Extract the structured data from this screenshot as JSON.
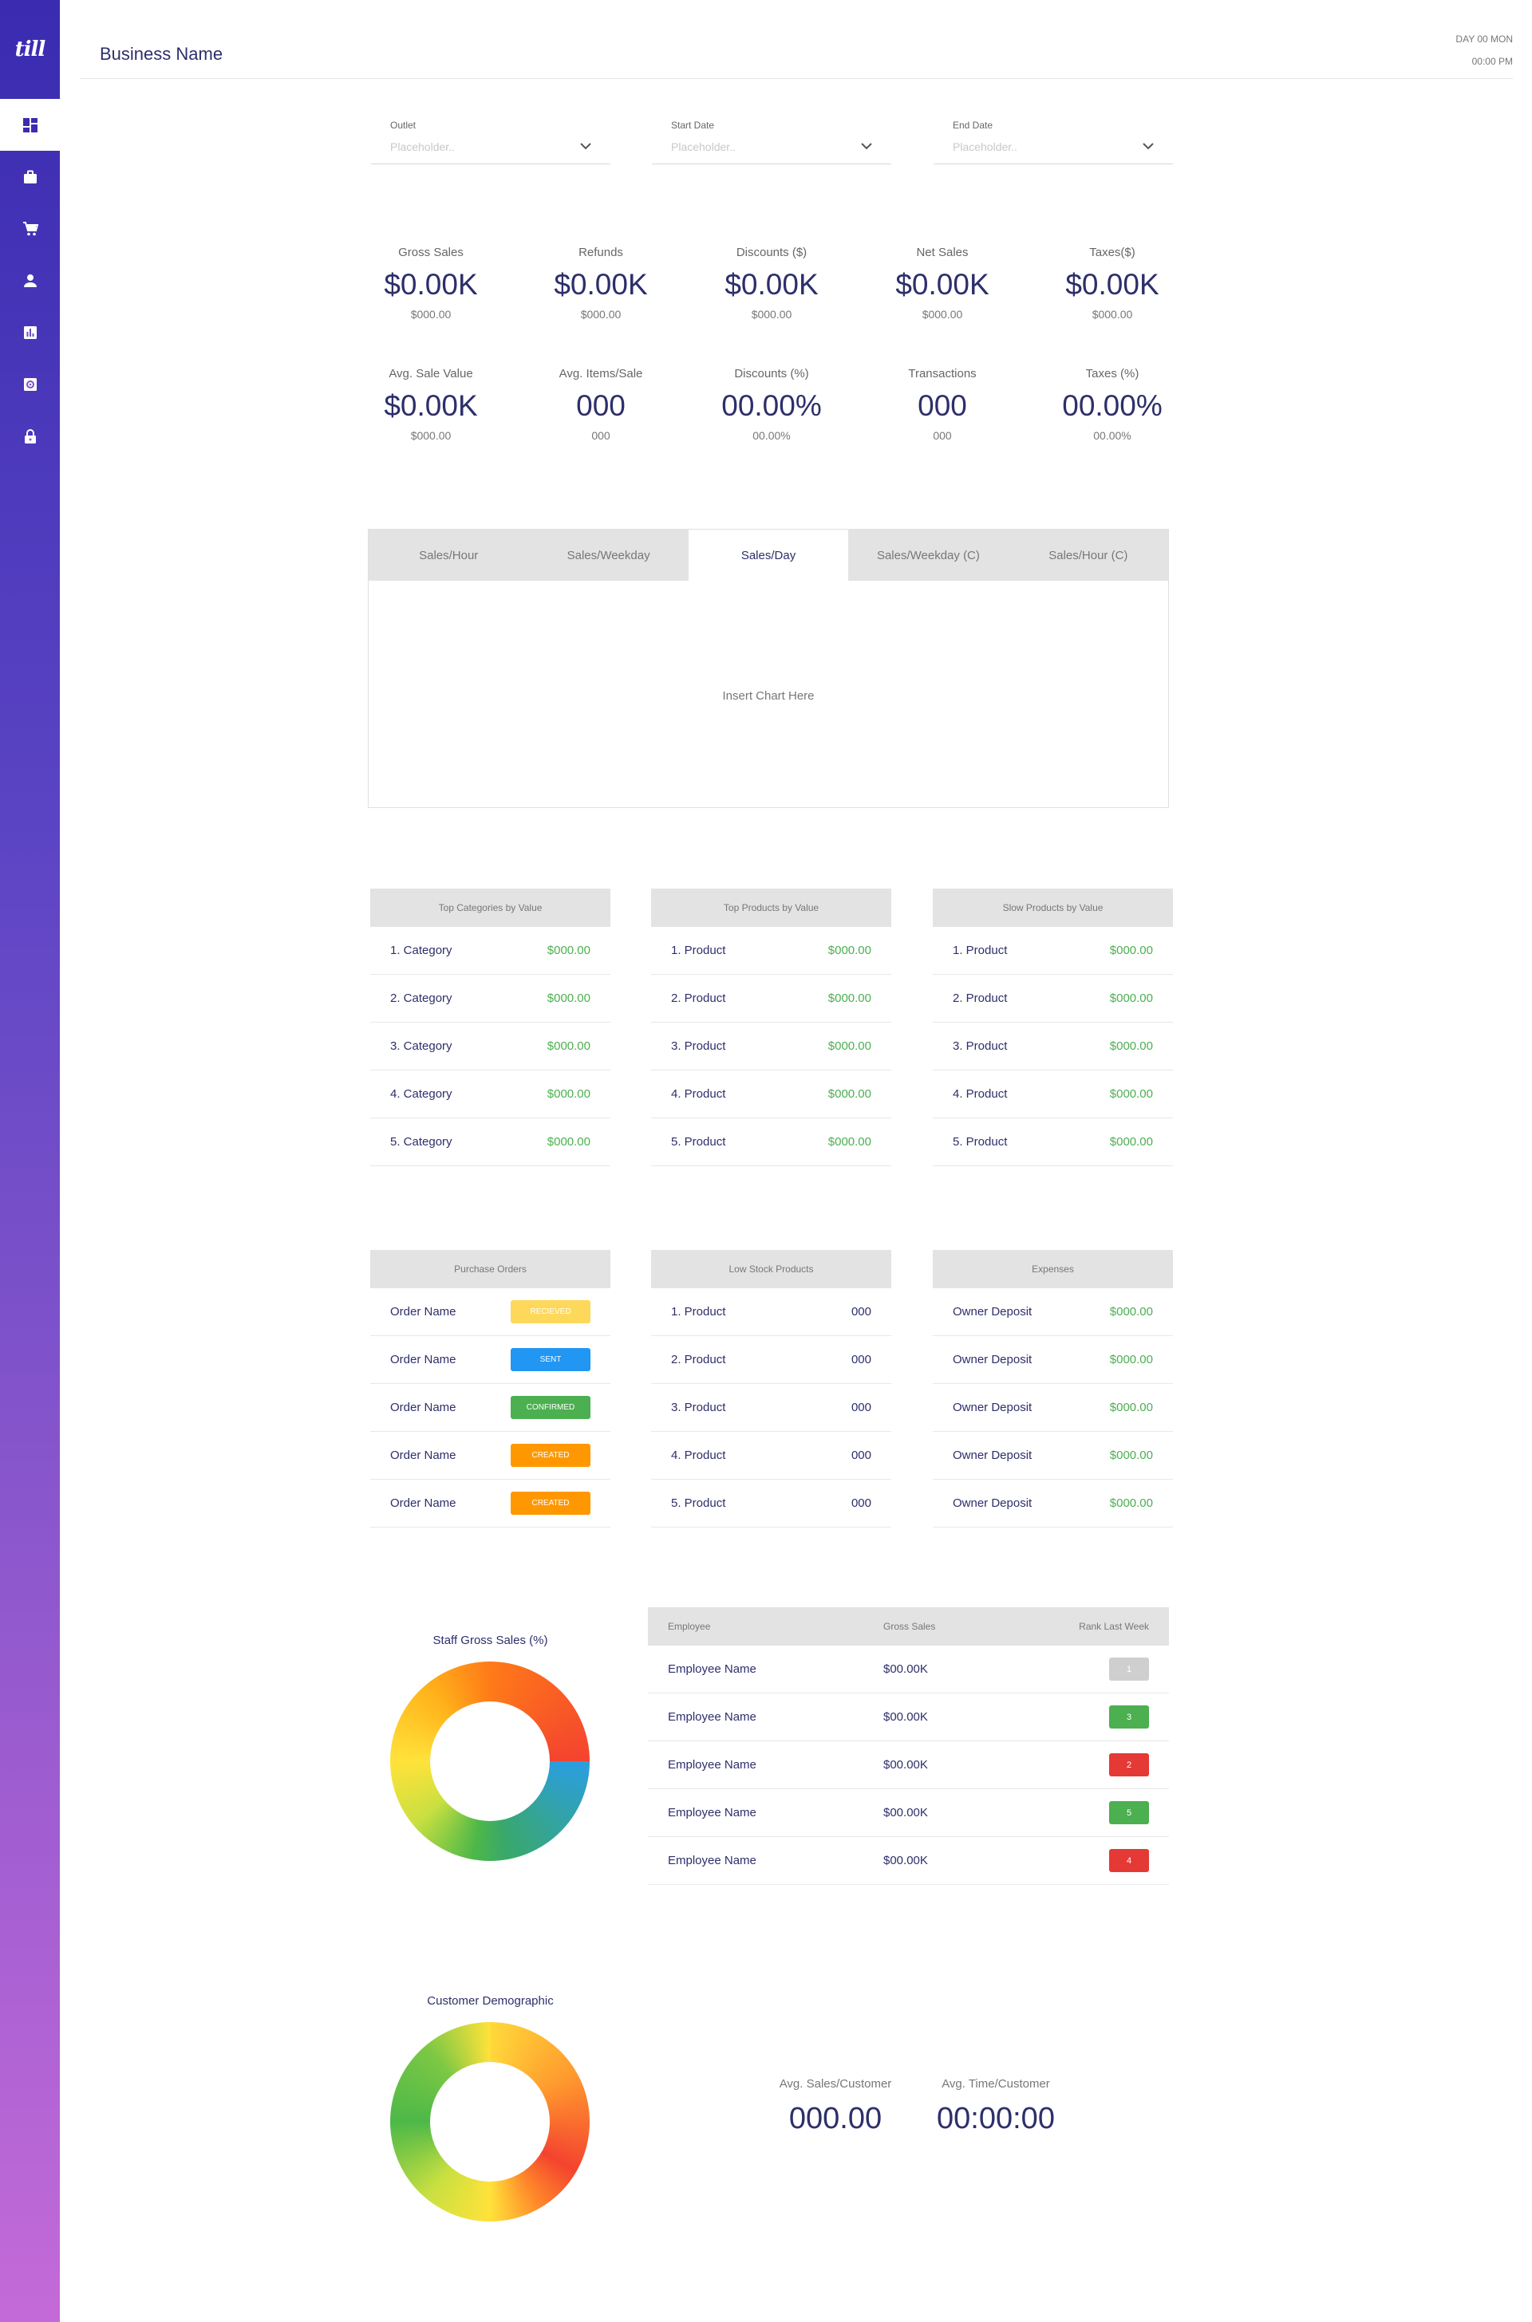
{
  "app": {
    "logo": "till"
  },
  "header": {
    "title": "Business Name",
    "day": "DAY 00 MON",
    "time": "00:00 PM"
  },
  "sidebar": {
    "items": [
      {
        "icon": "dashboard-icon",
        "active": true
      },
      {
        "icon": "briefcase-icon"
      },
      {
        "icon": "cart-icon"
      },
      {
        "icon": "user-icon"
      },
      {
        "icon": "bar-chart-icon"
      },
      {
        "icon": "settings-icon"
      },
      {
        "icon": "lock-icon"
      }
    ]
  },
  "filters": [
    {
      "label": "Outlet",
      "placeholder": "Placeholder.."
    },
    {
      "label": "Start Date",
      "placeholder": "Placeholder.."
    },
    {
      "label": "End Date",
      "placeholder": "Placeholder.."
    }
  ],
  "metrics": [
    {
      "label": "Gross Sales",
      "value": "$0.00K",
      "sub": "$000.00"
    },
    {
      "label": "Refunds",
      "value": "$0.00K",
      "sub": "$000.00"
    },
    {
      "label": "Discounts ($)",
      "value": "$0.00K",
      "sub": "$000.00"
    },
    {
      "label": "Net Sales",
      "value": "$0.00K",
      "sub": "$000.00"
    },
    {
      "label": "Taxes($)",
      "value": "$0.00K",
      "sub": "$000.00"
    },
    {
      "label": "Avg. Sale Value",
      "value": "$0.00K",
      "sub": "$000.00"
    },
    {
      "label": "Avg. Items/Sale",
      "value": "000",
      "sub": "000"
    },
    {
      "label": "Discounts (%)",
      "value": "00.00%",
      "sub": "00.00%"
    },
    {
      "label": "Transactions",
      "value": "000",
      "sub": "000"
    },
    {
      "label": "Taxes (%)",
      "value": "00.00%",
      "sub": "00.00%"
    }
  ],
  "chart_tabs": {
    "tabs": [
      "Sales/Hour",
      "Sales/Weekday",
      "Sales/Day",
      "Sales/Weekday (C)",
      "Sales/Hour (C)"
    ],
    "active_index": 2,
    "placeholder": "Insert Chart Here"
  },
  "top_categories": {
    "title": "Top Categories by Value",
    "rows": [
      {
        "name": "1. Category",
        "value": "$000.00"
      },
      {
        "name": "2. Category",
        "value": "$000.00"
      },
      {
        "name": "3. Category",
        "value": "$000.00"
      },
      {
        "name": "4. Category",
        "value": "$000.00"
      },
      {
        "name": "5. Category",
        "value": "$000.00"
      }
    ]
  },
  "top_products": {
    "title": "Top Products by Value",
    "rows": [
      {
        "name": "1. Product",
        "value": "$000.00"
      },
      {
        "name": "2. Product",
        "value": "$000.00"
      },
      {
        "name": "3. Product",
        "value": "$000.00"
      },
      {
        "name": "4. Product",
        "value": "$000.00"
      },
      {
        "name": "5. Product",
        "value": "$000.00"
      }
    ]
  },
  "slow_products": {
    "title": "Slow Products by Value",
    "rows": [
      {
        "name": "1. Product",
        "value": "$000.00"
      },
      {
        "name": "2. Product",
        "value": "$000.00"
      },
      {
        "name": "3. Product",
        "value": "$000.00"
      },
      {
        "name": "4. Product",
        "value": "$000.00"
      },
      {
        "name": "5. Product",
        "value": "$000.00"
      }
    ]
  },
  "purchase_orders": {
    "title": "Purchase Orders",
    "rows": [
      {
        "name": "Order Name",
        "status": "RECIEVED",
        "color": "#fdd85a"
      },
      {
        "name": "Order Name",
        "status": "SENT",
        "color": "#2196f3"
      },
      {
        "name": "Order Name",
        "status": "CONFIRMED",
        "color": "#4caf50"
      },
      {
        "name": "Order Name",
        "status": "CREATED",
        "color": "#ff9800"
      },
      {
        "name": "Order Name",
        "status": "CREATED",
        "color": "#ff9800"
      }
    ]
  },
  "low_stock": {
    "title": "Low Stock Products",
    "rows": [
      {
        "name": "1. Product",
        "value": "000"
      },
      {
        "name": "2. Product",
        "value": "000"
      },
      {
        "name": "3. Product",
        "value": "000"
      },
      {
        "name": "4. Product",
        "value": "000"
      },
      {
        "name": "5. Product",
        "value": "000"
      }
    ]
  },
  "expenses": {
    "title": "Expenses",
    "rows": [
      {
        "name": "Owner Deposit",
        "value": "$000.00"
      },
      {
        "name": "Owner Deposit",
        "value": "$000.00"
      },
      {
        "name": "Owner Deposit",
        "value": "$000.00"
      },
      {
        "name": "Owner Deposit",
        "value": "$000.00"
      },
      {
        "name": "Owner Deposit",
        "value": "$000.00"
      }
    ]
  },
  "staff_chart": {
    "title": "Staff Gross Sales (%)"
  },
  "employees": {
    "headers": [
      "Employee",
      "Gross Sales",
      "Rank Last Week"
    ],
    "rows": [
      {
        "name": "Employee Name",
        "sales": "$00.00K",
        "rank": "1",
        "color": "#cfcfcf"
      },
      {
        "name": "Employee Name",
        "sales": "$00.00K",
        "rank": "3",
        "color": "#4caf50"
      },
      {
        "name": "Employee Name",
        "sales": "$00.00K",
        "rank": "2",
        "color": "#e53935"
      },
      {
        "name": "Employee Name",
        "sales": "$00.00K",
        "rank": "5",
        "color": "#4caf50"
      },
      {
        "name": "Employee Name",
        "sales": "$00.00K",
        "rank": "4",
        "color": "#e53935"
      }
    ]
  },
  "customer_chart": {
    "title": "Customer Demographic"
  },
  "customer_stats": [
    {
      "label": "Avg. Sales/Customer",
      "value": "000.00"
    },
    {
      "label": "Avg. Time/Customer",
      "value": "00:00:00"
    }
  ],
  "colors": {
    "brand": "#3a2bb0",
    "accent_text": "#2d2f6b",
    "positive": "#4caf50"
  }
}
